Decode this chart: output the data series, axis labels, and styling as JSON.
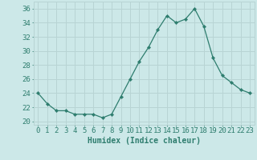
{
  "x": [
    0,
    1,
    2,
    3,
    4,
    5,
    6,
    7,
    8,
    9,
    10,
    11,
    12,
    13,
    14,
    15,
    16,
    17,
    18,
    19,
    20,
    21,
    22,
    23
  ],
  "y": [
    24,
    22.5,
    21.5,
    21.5,
    21,
    21,
    21,
    20.5,
    21,
    23.5,
    26,
    28.5,
    30.5,
    33,
    35,
    34,
    34.5,
    36,
    33.5,
    29,
    26.5,
    25.5,
    24.5,
    24
  ],
  "line_color": "#2e7d6e",
  "marker": "D",
  "marker_size": 2.2,
  "bg_color": "#cce8e8",
  "grid_color": "#b8d4d4",
  "xlabel": "Humidex (Indice chaleur)",
  "ylim": [
    19.5,
    37
  ],
  "xlim": [
    -0.5,
    23.5
  ],
  "yticks": [
    20,
    22,
    24,
    26,
    28,
    30,
    32,
    34,
    36
  ],
  "xticks": [
    0,
    1,
    2,
    3,
    4,
    5,
    6,
    7,
    8,
    9,
    10,
    11,
    12,
    13,
    14,
    15,
    16,
    17,
    18,
    19,
    20,
    21,
    22,
    23
  ],
  "tick_color": "#2e7d6e",
  "font_size": 6.5,
  "xlabel_fontsize": 7.0
}
